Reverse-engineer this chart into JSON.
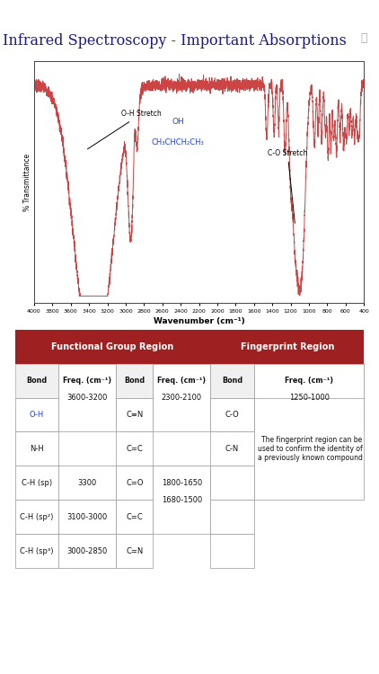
{
  "title": "Infrared Spectroscopy - Important Absorptions",
  "title_color": "#1a1a8c",
  "title_fontsize": 11.5,
  "background_color": "#ffffff",
  "spectrum_color": "#cc4444",
  "xlabel": "Wavenumber (cm⁻¹)",
  "ylabel": "% Transmittance",
  "xmin": 4000,
  "xmax": 400,
  "table_header_color": "#9e2020",
  "table_header_text_color": "#ffffff",
  "oh_stretch_label": "O-H Stretch",
  "co_stretch_label": "C-O Stretch",
  "molecule_label_top": "OH",
  "molecule_label_bot": "CH₃CHCH₂CH₃",
  "molecule_color": "#2244cc",
  "info_icon_text": "ⓘ",
  "fingerprint_text": "The fingerprint region can be\nused to confirm the identity of\na previously known compound",
  "col_widths": [
    0.125,
    0.165,
    0.105,
    0.165,
    0.125,
    0.315
  ],
  "col_labels": [
    "Bond",
    "Freq. (cm⁻¹)",
    "Bond",
    "Freq. (cm⁻¹)",
    "Bond",
    "Freq. (cm⁻¹)"
  ],
  "rows": [
    [
      "O-H",
      "3600-3200",
      "C≡N",
      "2300-2100",
      "C-O",
      "1250-1000"
    ],
    [
      "N-H",
      "",
      "C=C",
      "",
      "C-N",
      ""
    ],
    [
      "C-H (sp)",
      "3300",
      "C=O",
      "1800-1650",
      "",
      "fingerprint"
    ],
    [
      "C-H (sp²)",
      "3100-3000",
      "C=C",
      "1680-1500",
      "",
      ""
    ],
    [
      "C-H (sp³)",
      "3000-2850",
      "C=N",
      "",
      "",
      ""
    ]
  ]
}
